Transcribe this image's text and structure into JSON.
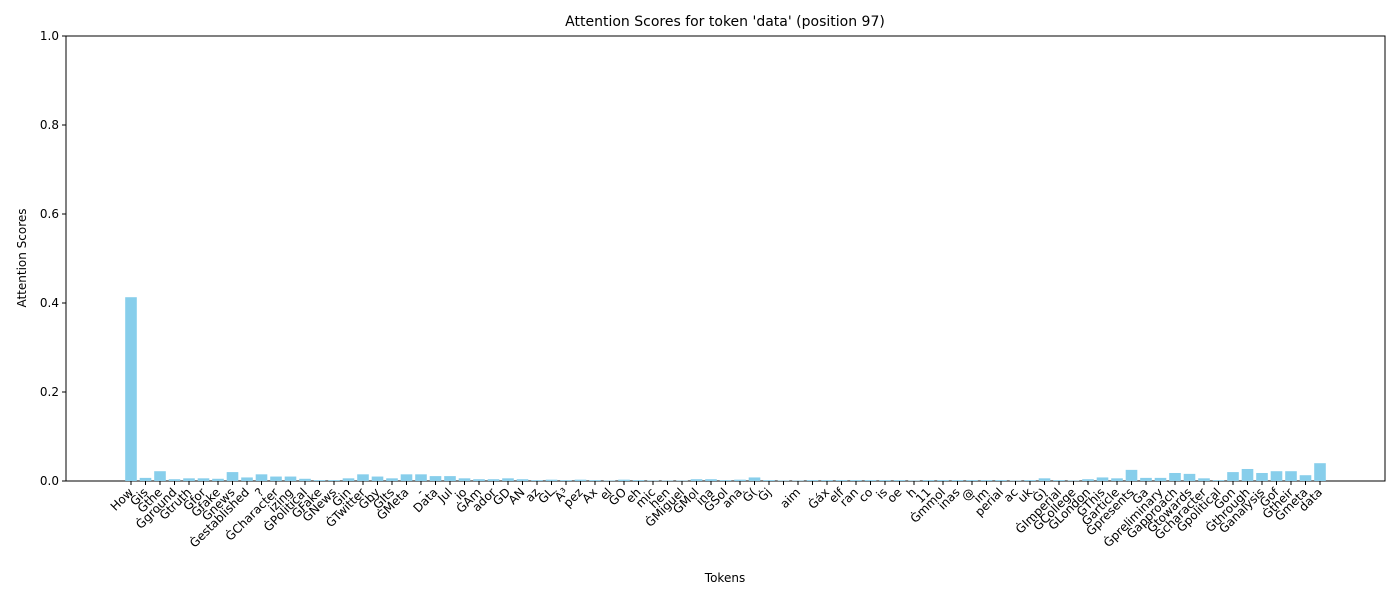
{
  "chart_data": {
    "type": "bar",
    "title": "Attention Scores for token 'data' (position 97)",
    "x_label": "Tokens",
    "y_label": "Attention Scores",
    "color": "#87ceeb",
    "ylim": [
      0,
      1.0
    ],
    "yticks": [
      {
        "value": 0,
        "label": "0.0"
      },
      {
        "value": 0.2,
        "label": "0.2"
      },
      {
        "value": 0.4,
        "label": "0.4"
      },
      {
        "value": 0.6,
        "label": "0.6"
      },
      {
        "value": 0.8,
        "label": "0.8"
      },
      {
        "value": 1.0,
        "label": "1.0"
      }
    ],
    "categories": [
      "How",
      "Ġis",
      "Ġthe",
      "Ġground",
      "Ġtruth",
      "Ġfor",
      "Ġfake",
      "Ġnews",
      "Ġestablished",
      "?",
      "ĠCharacter",
      "izing",
      "ĠPolitical",
      "ĠFake",
      "ĠNews",
      "Ġin",
      "ĠTwitter",
      "Ġby",
      "ĠIts",
      "ĠMeta",
      "-",
      "Data",
      "Jul",
      "io",
      "ĠAm",
      "ador",
      "ĠD",
      "AN",
      "az",
      "ĠL",
      "Ã³",
      "pez",
      "Ax",
      "el",
      "ĠO",
      "eh",
      "mic",
      "hen",
      "ĠMiguel",
      "ĠMol",
      "ina",
      "ĠSol",
      "ana",
      "Ġ(",
      "Ġj",
      null,
      "aim",
      null,
      "Ġáx",
      "elf",
      "ran",
      "co",
      "is",
      "oe",
      "h",
      "11",
      "Ġmmol",
      "inas",
      "@",
      "im",
      "perial",
      "ac",
      "uk",
      "Ġ)",
      "ĠImperial",
      "ĠCollege",
      "ĠLondon",
      "ĠThis",
      "Ġarticle",
      "Ġpresents",
      "Ġa",
      "Ġpreliminary",
      "Ġapproach",
      "Ġtowards",
      "Ġcharacter",
      "Ġpolitical",
      "Ġon",
      "Ġthrough",
      "Ġanalysis",
      "Ġof",
      "Ġtheir",
      "Ġmeta",
      "data"
    ],
    "values": [
      0.413,
      0.007,
      0.022,
      0.004,
      0.006,
      0.006,
      0.005,
      0.02,
      0.008,
      0.015,
      0.01,
      0.01,
      0.005,
      0.002,
      0.002,
      0.006,
      0.015,
      0.01,
      0.006,
      0.015,
      0.015,
      0.011,
      0.011,
      0.006,
      0.004,
      0.004,
      0.006,
      0.004,
      0.002,
      0.003,
      0.002,
      0.003,
      0.002,
      0.001,
      0.003,
      0.002,
      0.001,
      0.001,
      0.001,
      0.004,
      0.004,
      0.002,
      0.003,
      0.008,
      0.002,
      0.001,
      0.001,
      0.002,
      0.002,
      0.002,
      0.002,
      0.002,
      0.002,
      0.002,
      0.001,
      0.002,
      0.002,
      0.002,
      0.002,
      0.002,
      0.002,
      0.001,
      0.002,
      0.006,
      0.002,
      0.001,
      0.004,
      0.008,
      0.006,
      0.025,
      0.007,
      0.007,
      0.018,
      0.016,
      0.006,
      0.002,
      0.02,
      0.027,
      0.018,
      0.022,
      0.022,
      0.013,
      0.04
    ]
  }
}
